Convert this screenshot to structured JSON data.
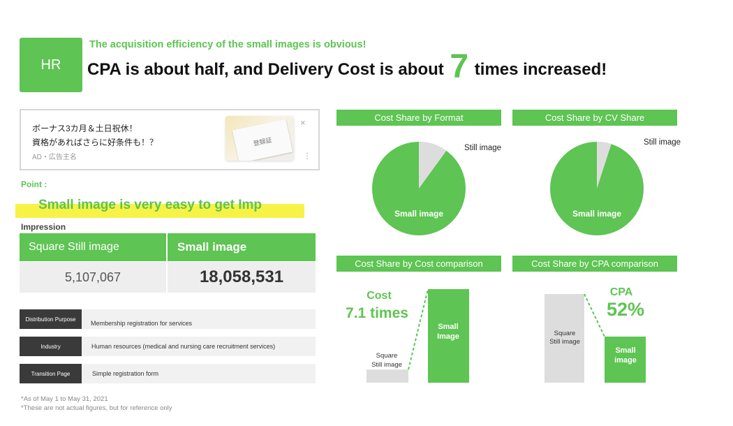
{
  "header": {
    "badge": "HR",
    "subtitle": "The acquisition efficiency of the small images is obvious!",
    "headline_pre": "CPA is about half, and Delivery Cost is about",
    "headline_num": "7",
    "headline_post": "times increased!"
  },
  "ad_preview": {
    "line1": "ボーナス3カ月＆土日祝休！",
    "line2": "資格があればさらに好条件も！？",
    "line3": "AD・広告主名",
    "thumb_text": "登録証",
    "close_glyph": "×",
    "dots_glyph": "⋮"
  },
  "point": {
    "label": "Point :",
    "text": "Small image is very easy to get Imp"
  },
  "impression": {
    "label": "Impression",
    "col1_header": "Square Still image",
    "col2_header": "Small image",
    "col1_value": "5,107,067",
    "col2_value": "18,058,531"
  },
  "info_rows": [
    {
      "key": "Distribution Purpose",
      "value": "Membership registration for services"
    },
    {
      "key": "Industry",
      "value": "Human resources (medical and nursing care recruitment services)"
    },
    {
      "key": "Transition Page",
      "value": "Simple registration form"
    }
  ],
  "footnotes": [
    "*As of May 1 to May 31, 2021",
    "*These are not actual figures, but for reference only"
  ],
  "colors": {
    "accent": "#5ec453",
    "muted": "#dddddd",
    "highlight": "#f6f346"
  },
  "chart_data": [
    {
      "type": "pie",
      "title": "Cost Share by Format",
      "labels": [
        "Small image",
        "Still image"
      ],
      "values": [
        0.9,
        0.1
      ]
    },
    {
      "type": "pie",
      "title": "Cost Share by CV Share",
      "labels": [
        "Small image",
        "Still image"
      ],
      "values": [
        0.95,
        0.05
      ]
    },
    {
      "type": "bar",
      "title": "Cost Share by Cost comparison",
      "categories": [
        "Square Still image",
        "Small Image"
      ],
      "values": [
        1,
        7.1
      ],
      "annotation_label": "Cost",
      "annotation_value": "7.1 times"
    },
    {
      "type": "bar",
      "title": "Cost Share by CPA comparison",
      "categories": [
        "Square Still image",
        "Small image"
      ],
      "values": [
        100,
        52
      ],
      "annotation_label": "CPA",
      "annotation_value": "52%"
    }
  ]
}
